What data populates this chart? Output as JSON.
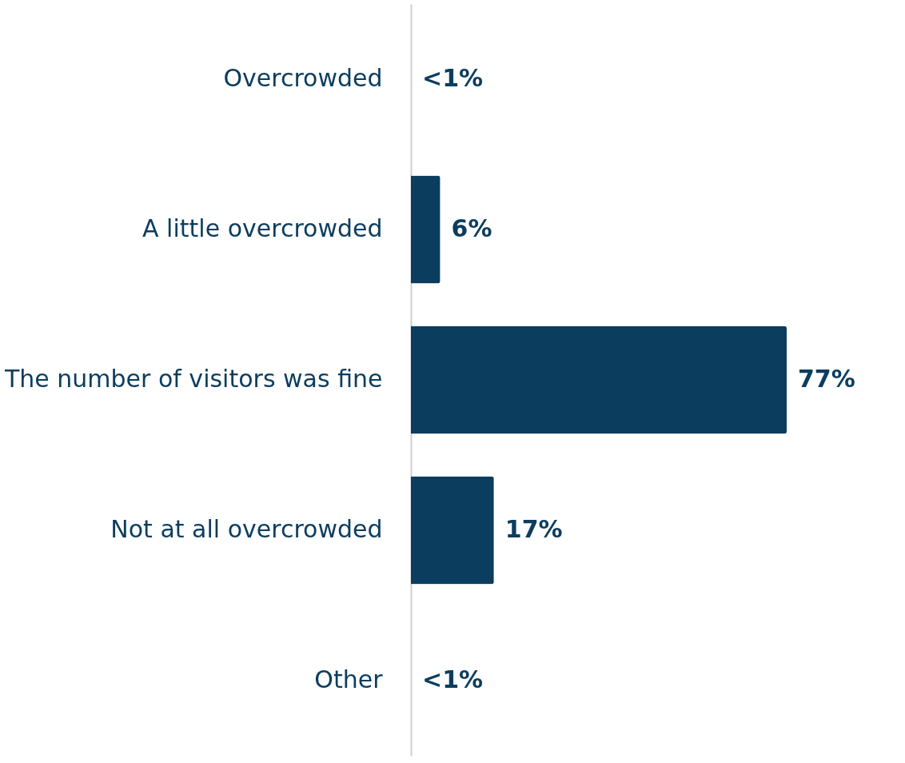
{
  "chart_data": {
    "type": "bar",
    "orientation": "horizontal",
    "categories": [
      "Overcrowded",
      "A little overcrowded",
      "The number of visitors was fine",
      "Not at all overcrowded",
      "Other"
    ],
    "values": [
      0,
      6,
      77,
      17,
      0
    ],
    "value_labels": [
      "<1%",
      "6%",
      "77%",
      "17%",
      "<1%"
    ],
    "color": "#0b3d5e"
  }
}
